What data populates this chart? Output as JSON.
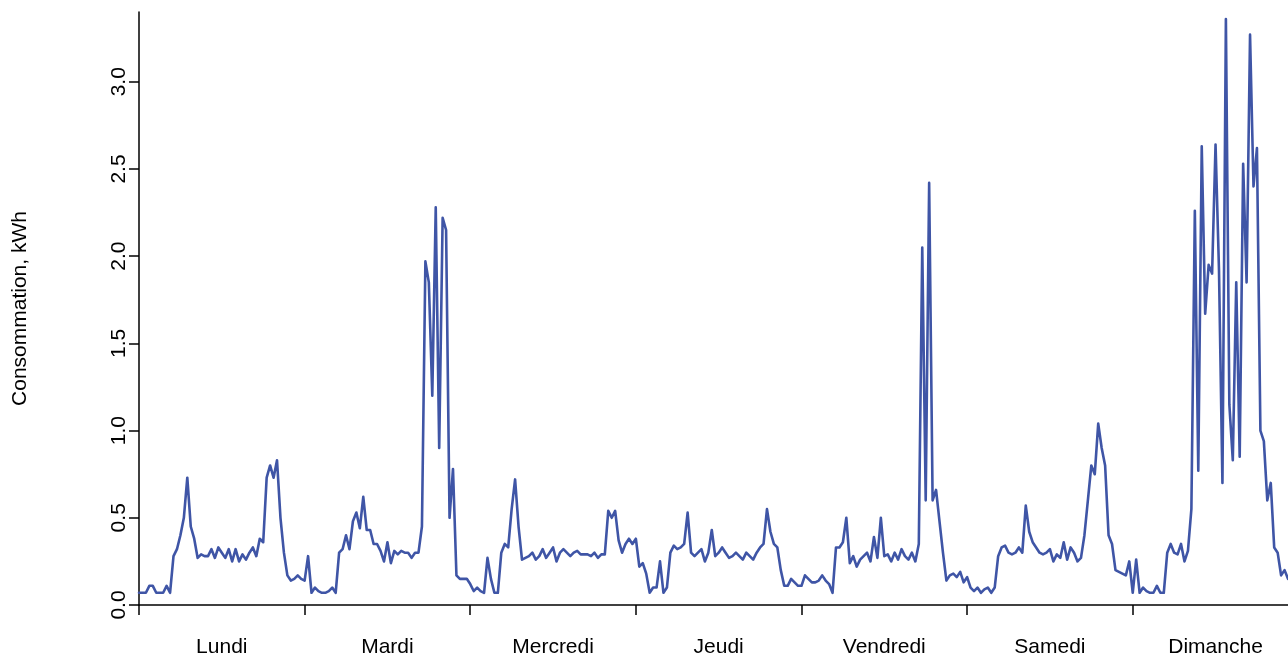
{
  "chart_data": {
    "type": "line",
    "ylabel": "Consommation, kWh",
    "color": "#3f55a6",
    "marker": "none",
    "line_style": "solid",
    "grid": false,
    "categories": [
      null,
      null,
      null,
      null,
      null,
      null,
      null,
      null,
      null,
      null,
      null,
      null,
      null,
      null,
      null,
      null,
      null,
      null,
      null,
      null,
      null,
      null,
      null,
      null,
      "Lundi",
      null,
      null,
      null,
      null,
      null,
      null,
      null,
      null,
      null,
      null,
      null,
      null,
      null,
      null,
      null,
      null,
      null,
      null,
      null,
      null,
      null,
      null,
      null,
      null,
      null,
      null,
      null,
      null,
      null,
      null,
      null,
      null,
      null,
      null,
      null,
      null,
      null,
      null,
      null,
      null,
      null,
      null,
      null,
      null,
      null,
      null,
      null,
      "Mardi",
      null,
      null,
      null,
      null,
      null,
      null,
      null,
      null,
      null,
      null,
      null,
      null,
      null,
      null,
      null,
      null,
      null,
      null,
      null,
      null,
      null,
      null,
      null,
      null,
      null,
      null,
      null,
      null,
      null,
      null,
      null,
      null,
      null,
      null,
      null,
      null,
      null,
      null,
      null,
      null,
      null,
      null,
      null,
      null,
      null,
      null,
      null,
      "Mercredi",
      null,
      null,
      null,
      null,
      null,
      null,
      null,
      null,
      null,
      null,
      null,
      null,
      null,
      null,
      null,
      null,
      null,
      null,
      null,
      null,
      null,
      null,
      null,
      null,
      null,
      null,
      null,
      null,
      null,
      null,
      null,
      null,
      null,
      null,
      null,
      null,
      null,
      null,
      null,
      null,
      null,
      null,
      null,
      null,
      null,
      null,
      null,
      "Jeudi",
      null,
      null,
      null,
      null,
      null,
      null,
      null,
      null,
      null,
      null,
      null,
      null,
      null,
      null,
      null,
      null,
      null,
      null,
      null,
      null,
      null,
      null,
      null,
      null,
      null,
      null,
      null,
      null,
      null,
      null,
      null,
      null,
      null,
      null,
      null,
      null,
      null,
      null,
      null,
      null,
      null,
      null,
      null,
      null,
      null,
      null,
      null,
      "Vendredi",
      null,
      null,
      null,
      null,
      null,
      null,
      null,
      null,
      null,
      null,
      null,
      null,
      null,
      null,
      null,
      null,
      null,
      null,
      null,
      null,
      null,
      null,
      null,
      null,
      null,
      null,
      null,
      null,
      null,
      null,
      null,
      null,
      null,
      null,
      null,
      null,
      null,
      null,
      null,
      null,
      null,
      null,
      null,
      null,
      null,
      null,
      null,
      "Samedi",
      null,
      null,
      null,
      null,
      null,
      null,
      null,
      null,
      null,
      null,
      null,
      null,
      null,
      null,
      null,
      null,
      null,
      null,
      null,
      null,
      null,
      null,
      null,
      null,
      null,
      null,
      null,
      null,
      null,
      null,
      null,
      null,
      null,
      null,
      null,
      null,
      null,
      null,
      null,
      null,
      null,
      null,
      null,
      null,
      null,
      null,
      null,
      "Dimanche",
      null,
      null,
      null,
      null,
      null,
      null,
      null,
      null,
      null,
      null,
      null,
      null,
      null,
      null,
      null,
      null,
      null,
      null,
      null,
      null,
      null
    ],
    "ylim": [
      0,
      3.4
    ],
    "yticks": [
      {
        "value": 0,
        "label": "0.0"
      },
      {
        "value": 0.5,
        "label": "0.5"
      },
      {
        "value": 1,
        "label": "1.0"
      },
      {
        "value": 1.5,
        "label": "1.5"
      },
      {
        "value": 2,
        "label": "2.0"
      },
      {
        "value": 2.5,
        "label": "2.5"
      },
      {
        "value": 3,
        "label": "3.0"
      }
    ],
    "values": [
      0.07,
      0.07,
      0.07,
      0.11,
      0.11,
      0.07,
      0.07,
      0.07,
      0.11,
      0.07,
      0.28,
      0.32,
      0.4,
      0.5,
      0.73,
      0.45,
      0.38,
      0.27,
      0.29,
      0.28,
      0.28,
      0.32,
      0.27,
      0.33,
      0.3,
      0.27,
      0.32,
      0.25,
      0.32,
      0.25,
      0.29,
      0.26,
      0.3,
      0.33,
      0.28,
      0.38,
      0.36,
      0.73,
      0.8,
      0.73,
      0.83,
      0.5,
      0.3,
      0.17,
      0.14,
      0.15,
      0.17,
      0.15,
      0.14,
      0.28,
      0.07,
      0.1,
      0.08,
      0.07,
      0.07,
      0.08,
      0.1,
      0.07,
      0.3,
      0.32,
      0.4,
      0.32,
      0.48,
      0.53,
      0.44,
      0.62,
      0.43,
      0.43,
      0.35,
      0.35,
      0.31,
      0.25,
      0.36,
      0.24,
      0.31,
      0.29,
      0.31,
      0.3,
      0.3,
      0.27,
      0.3,
      0.3,
      0.45,
      1.97,
      1.85,
      1.2,
      2.28,
      0.9,
      2.22,
      2.15,
      0.5,
      0.78,
      0.17,
      0.15,
      0.15,
      0.15,
      0.12,
      0.08,
      0.1,
      0.08,
      0.07,
      0.27,
      0.15,
      0.07,
      0.07,
      0.3,
      0.35,
      0.33,
      0.55,
      0.72,
      0.45,
      0.26,
      0.27,
      0.28,
      0.3,
      0.26,
      0.28,
      0.32,
      0.27,
      0.3,
      0.33,
      0.25,
      0.3,
      0.32,
      0.3,
      0.28,
      0.3,
      0.31,
      0.29,
      0.29,
      0.29,
      0.28,
      0.3,
      0.27,
      0.29,
      0.29,
      0.54,
      0.5,
      0.54,
      0.37,
      0.3,
      0.35,
      0.38,
      0.35,
      0.38,
      0.22,
      0.24,
      0.18,
      0.07,
      0.1,
      0.1,
      0.25,
      0.07,
      0.1,
      0.3,
      0.34,
      0.32,
      0.33,
      0.35,
      0.53,
      0.3,
      0.28,
      0.3,
      0.32,
      0.25,
      0.3,
      0.43,
      0.28,
      0.3,
      0.33,
      0.3,
      0.27,
      0.28,
      0.3,
      0.28,
      0.26,
      0.3,
      0.28,
      0.26,
      0.3,
      0.33,
      0.35,
      0.55,
      0.42,
      0.35,
      0.33,
      0.2,
      0.11,
      0.11,
      0.15,
      0.13,
      0.11,
      0.11,
      0.17,
      0.15,
      0.13,
      0.13,
      0.14,
      0.17,
      0.14,
      0.12,
      0.07,
      0.33,
      0.33,
      0.36,
      0.5,
      0.24,
      0.28,
      0.22,
      0.26,
      0.28,
      0.3,
      0.25,
      0.39,
      0.27,
      0.5,
      0.28,
      0.29,
      0.25,
      0.3,
      0.26,
      0.32,
      0.28,
      0.26,
      0.3,
      0.25,
      0.35,
      2.05,
      0.6,
      2.42,
      0.6,
      0.66,
      0.48,
      0.3,
      0.14,
      0.17,
      0.18,
      0.16,
      0.19,
      0.13,
      0.16,
      0.1,
      0.08,
      0.1,
      0.07,
      0.09,
      0.1,
      0.07,
      0.1,
      0.28,
      0.33,
      0.34,
      0.3,
      0.29,
      0.3,
      0.33,
      0.3,
      0.57,
      0.42,
      0.36,
      0.33,
      0.3,
      0.29,
      0.3,
      0.32,
      0.25,
      0.29,
      0.27,
      0.36,
      0.26,
      0.33,
      0.3,
      0.25,
      0.27,
      0.4,
      0.6,
      0.8,
      0.75,
      1.04,
      0.9,
      0.8,
      0.4,
      0.35,
      0.2,
      0.19,
      0.18,
      0.17,
      0.25,
      0.07,
      0.26,
      0.07,
      0.1,
      0.08,
      0.07,
      0.07,
      0.11,
      0.07,
      0.07,
      0.3,
      0.35,
      0.3,
      0.29,
      0.35,
      0.25,
      0.31,
      0.55,
      2.26,
      0.77,
      2.63,
      1.67,
      1.95,
      1.9,
      2.64,
      1.92,
      0.7,
      3.36,
      1.15,
      0.83,
      1.85,
      0.85,
      2.53,
      1.85,
      3.27,
      2.4,
      2.62,
      1.0,
      0.94,
      0.6,
      0.7,
      0.33,
      0.3,
      0.17,
      0.2,
      0.15
    ]
  }
}
